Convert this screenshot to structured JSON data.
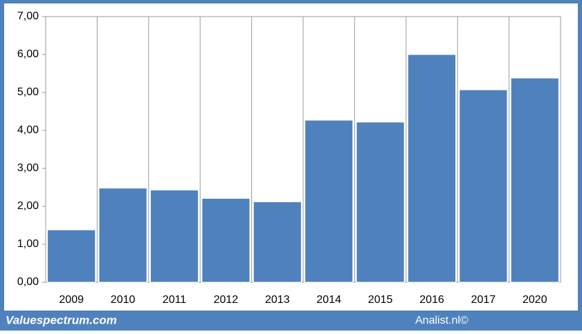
{
  "chart_data": {
    "type": "bar",
    "categories": [
      "2009",
      "2010",
      "2011",
      "2012",
      "2013",
      "2014",
      "2015",
      "2016",
      "2017",
      "2020"
    ],
    "values": [
      1.38,
      2.48,
      2.43,
      2.21,
      2.12,
      4.27,
      4.22,
      6.0,
      5.07,
      5.38
    ],
    "color": "#4f81bd",
    "ylim": [
      0,
      7
    ],
    "yticks": [
      {
        "value": 0,
        "label": "0,00"
      },
      {
        "value": 1,
        "label": "1,00"
      },
      {
        "value": 2,
        "label": "2,00"
      },
      {
        "value": 3,
        "label": "3,00"
      },
      {
        "value": 4,
        "label": "4,00"
      },
      {
        "value": 5,
        "label": "5,00"
      },
      {
        "value": 6,
        "label": "6,00"
      },
      {
        "value": 7,
        "label": "7,00"
      }
    ],
    "grid": true
  },
  "footer": {
    "brand": "Valuespectrum.com",
    "credit": "Analist.nl©"
  }
}
